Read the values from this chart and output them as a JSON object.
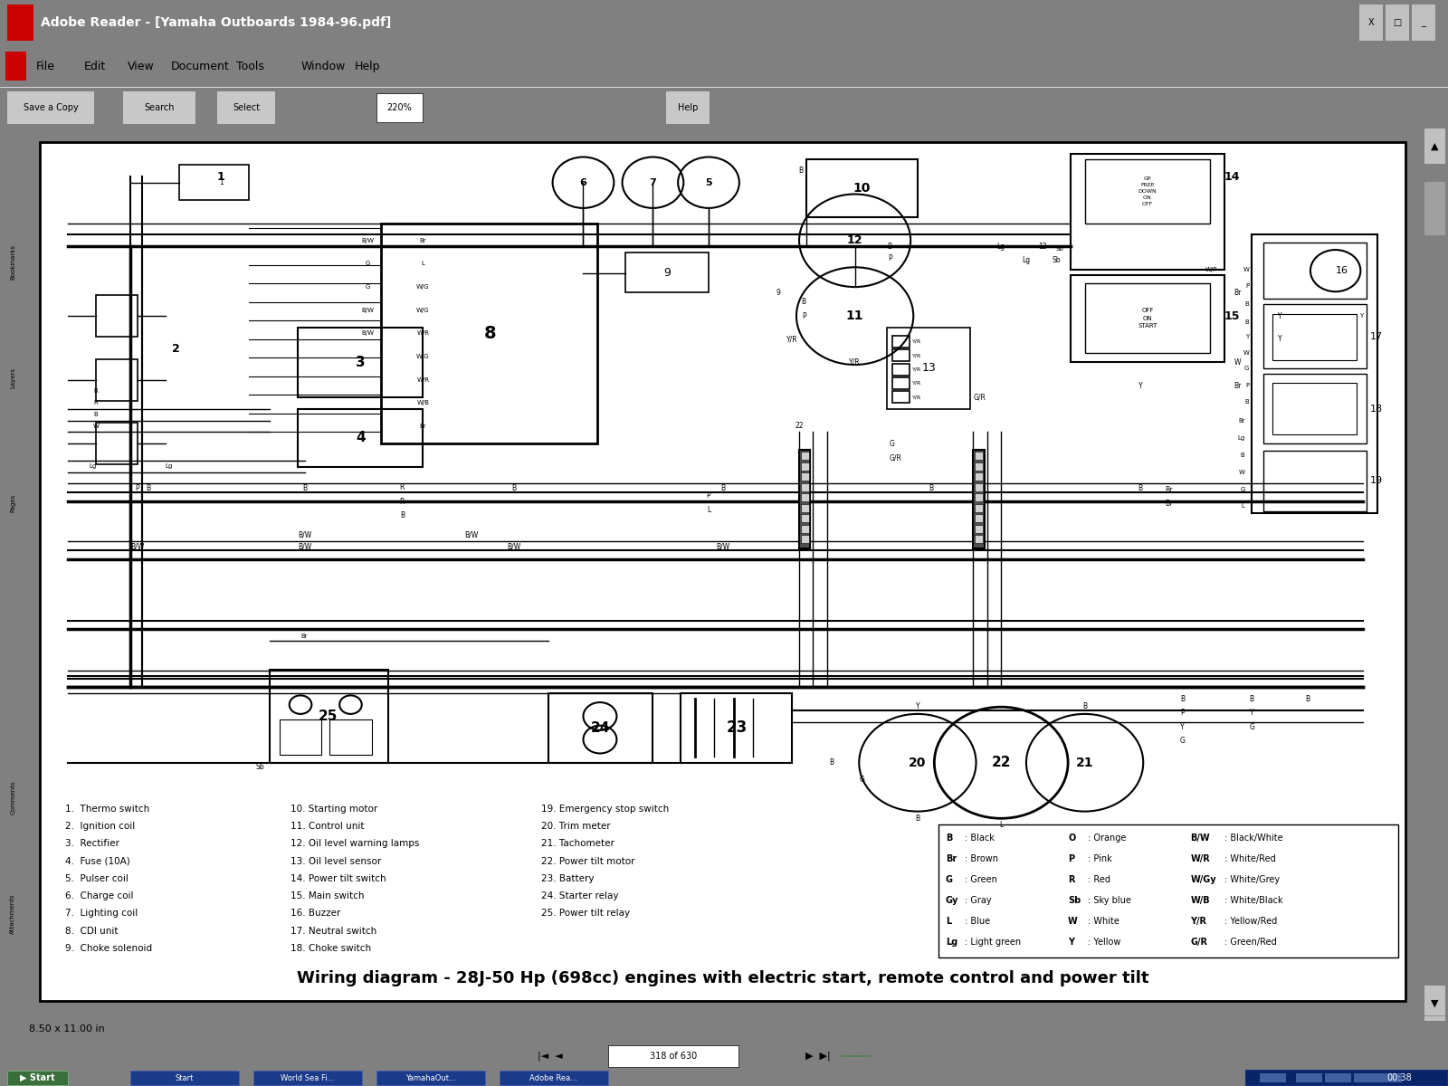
{
  "title_bar_text": "Adobe Reader - [Yamaha Outboards 1984-96.pdf]",
  "title_bar_color": "#003a7a",
  "title_bar_text_color": "#ffffff",
  "menu_bar_color": "#d4d0c8",
  "menu_items": [
    "File",
    "Edit",
    "View",
    "Document",
    "Tools",
    "Window",
    "Help"
  ],
  "toolbar_color": "#d4d0c8",
  "main_bg": "#808080",
  "diagram_title": "Wiring diagram - 28J-50 Hp (698cc) engines with electric start, remote control and power tilt",
  "diagram_title_size": 13,
  "status_text": "8.50 x 11.00 in",
  "page_indicator": "318 of 630",
  "taskbar_color": "#0a246a",
  "taskbar_items": [
    "Start",
    "World Sea Fi...",
    "YamahaOut...",
    "Adobe Rea..."
  ],
  "time_text": "00:38",
  "legend_items": [
    [
      "B",
      "Black",
      "O",
      "Orange",
      "B/W",
      "Black/White"
    ],
    [
      "Br",
      "Brown",
      "P",
      "Pink",
      "W/R",
      "White/Red"
    ],
    [
      "G",
      "Green",
      "R",
      "Red",
      "W/Gy",
      "White/Grey"
    ],
    [
      "Gy",
      "Gray",
      "Sb",
      "Sky blue",
      "W/B",
      "White/Black"
    ],
    [
      "L",
      "Blue",
      "W",
      "White",
      "Y/R",
      "Yellow/Red"
    ],
    [
      "Lg",
      "Light green",
      "Y",
      "Yellow",
      "G/R",
      "Green/Red"
    ]
  ],
  "component_list_col1": [
    "1.  Thermo switch",
    "2.  Ignition coil",
    "3.  Rectifier",
    "4.  Fuse (10A)",
    "5.  Pulser coil",
    "6.  Charge coil",
    "7.  Lighting coil",
    "8.  CDI unit",
    "9.  Choke solenoid"
  ],
  "component_list_col2": [
    "10. Starting motor",
    "11. Control unit",
    "12. Oil level warning lamps",
    "13. Oil level sensor",
    "14. Power tilt switch",
    "15. Main switch",
    "16. Buzzer",
    "17. Neutral switch",
    "18. Choke switch"
  ],
  "component_list_col3": [
    "19. Emergency stop switch",
    "20. Trim meter",
    "21. Tachometer",
    "22. Power tilt motor",
    "23. Battery",
    "24. Starter relay",
    "25. Power tilt relay"
  ]
}
